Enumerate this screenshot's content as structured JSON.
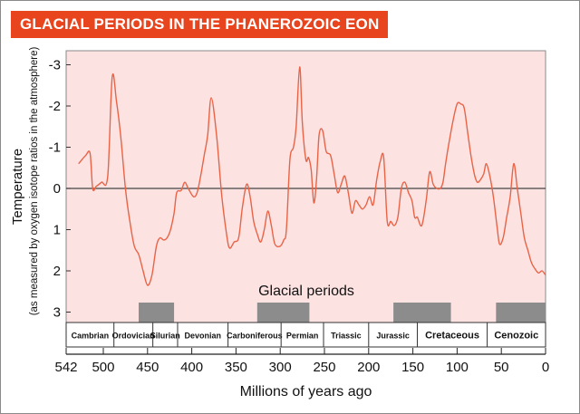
{
  "chart_data": {
    "type": "line",
    "title": "GLACIAL PERIODS IN THE PHANEROZOIC EON",
    "ylabel": "Temperature",
    "ylabel_sub": "(as measured by oxygen isotope ratios in the atmosphere)",
    "xlabel": "Millions of years ago",
    "x_reversed": true,
    "y_inverted": true,
    "xlim": [
      542,
      0
    ],
    "ylim": [
      -3.3,
      3.3
    ],
    "x_ticks": [
      {
        "value": 542,
        "label": "542"
      },
      {
        "value": 500,
        "label": "500"
      },
      {
        "value": 450,
        "label": "450"
      },
      {
        "value": 400,
        "label": "400"
      },
      {
        "value": 350,
        "label": "350"
      },
      {
        "value": 300,
        "label": "300"
      },
      {
        "value": 250,
        "label": "250"
      },
      {
        "value": 200,
        "label": "200"
      },
      {
        "value": 150,
        "label": "150"
      },
      {
        "value": 100,
        "label": "100"
      },
      {
        "value": 50,
        "label": "50"
      },
      {
        "value": 0,
        "label": "0"
      }
    ],
    "y_ticks": [
      {
        "value": -3,
        "label": "-3"
      },
      {
        "value": -2,
        "label": "-2"
      },
      {
        "value": -1,
        "label": "-1"
      },
      {
        "value": 0,
        "label": "0"
      },
      {
        "value": 1,
        "label": "1"
      },
      {
        "value": 2,
        "label": "2"
      },
      {
        "value": 3,
        "label": "3"
      }
    ],
    "series": [
      {
        "x": [
          528,
          520,
          515,
          512,
          508,
          502,
          495,
          490,
          485,
          480,
          475,
          470,
          465,
          460,
          455,
          450,
          445,
          440,
          436,
          432,
          428,
          424,
          420,
          417,
          412,
          408,
          404,
          398,
          394,
          390,
          386,
          382,
          378,
          372,
          366,
          360,
          357,
          352,
          347,
          343,
          338,
          334,
          330,
          326,
          322,
          318,
          314,
          310,
          306,
          300,
          296,
          293,
          289,
          285,
          282,
          278,
          275,
          271,
          268,
          265,
          262,
          259,
          256,
          252,
          248,
          243,
          239,
          235,
          231,
          227,
          223,
          219,
          215,
          211,
          207,
          203,
          199,
          195,
          191,
          187,
          183,
          179,
          175,
          171,
          167,
          163,
          159,
          155,
          151,
          148,
          145,
          140,
          135,
          131,
          127,
          123,
          119,
          116,
          113,
          110,
          105,
          100,
          96,
          92,
          88,
          84,
          80,
          77,
          74,
          70,
          67,
          63,
          59,
          55,
          52,
          48,
          44,
          40,
          36,
          32,
          28,
          24,
          20,
          16,
          12,
          8,
          4,
          0
        ],
        "y": [
          -0.6,
          -0.8,
          -0.85,
          0.0,
          -0.05,
          -0.15,
          -0.3,
          -2.7,
          -2.1,
          -1.2,
          0.0,
          0.8,
          1.4,
          1.6,
          2.0,
          2.35,
          2.1,
          1.4,
          1.2,
          1.25,
          1.2,
          1.0,
          0.6,
          0.1,
          0.05,
          -0.15,
          0.0,
          0.2,
          0.1,
          -0.3,
          -0.8,
          -1.3,
          -2.2,
          -1.3,
          0.2,
          1.2,
          1.45,
          1.3,
          1.2,
          0.5,
          -0.1,
          0.2,
          0.8,
          1.1,
          1.3,
          1.0,
          0.55,
          0.9,
          1.35,
          1.4,
          1.25,
          1.0,
          -0.7,
          -1.0,
          -1.5,
          -2.95,
          -1.6,
          -0.7,
          -0.75,
          -0.45,
          0.35,
          -0.2,
          -1.3,
          -1.4,
          -0.9,
          -0.8,
          -0.35,
          0.1,
          -0.1,
          -0.3,
          0.1,
          0.6,
          0.3,
          0.4,
          0.5,
          0.4,
          0.2,
          0.4,
          -0.2,
          -0.65,
          -0.75,
          0.8,
          0.8,
          0.9,
          0.7,
          0.0,
          -0.15,
          0.1,
          0.3,
          0.7,
          0.7,
          0.9,
          0.3,
          -0.4,
          -0.1,
          0.0,
          0.0,
          -0.15,
          -0.6,
          -1.0,
          -1.6,
          -2.05,
          -2.05,
          -1.95,
          -1.35,
          -0.75,
          -0.3,
          -0.15,
          -0.2,
          -0.35,
          -0.6,
          -0.3,
          0.2,
          0.9,
          1.35,
          1.2,
          0.7,
          0.2,
          -0.6,
          0.0,
          0.6,
          1.2,
          1.5,
          1.8,
          1.95,
          2.05,
          2.0,
          2.1
        ]
      }
    ],
    "glacial_periods_label": "Glacial periods",
    "glacial_periods": [
      {
        "start": 460,
        "end": 420
      },
      {
        "start": 326,
        "end": 267
      },
      {
        "start": 172,
        "end": 107
      },
      {
        "start": 56,
        "end": 0
      }
    ],
    "geologic_periods": [
      {
        "name": "Cambrian",
        "start": 542,
        "end": 488
      },
      {
        "name": "Ordovician",
        "start": 488,
        "end": 444
      },
      {
        "name": "Silurian",
        "start": 444,
        "end": 416
      },
      {
        "name": "Devonian",
        "start": 416,
        "end": 359
      },
      {
        "name": "Carboniferous",
        "start": 359,
        "end": 299
      },
      {
        "name": "Permian",
        "start": 299,
        "end": 251
      },
      {
        "name": "Triassic",
        "start": 251,
        "end": 200
      },
      {
        "name": "Jurassic",
        "start": 200,
        "end": 145
      },
      {
        "name": "Cretaceous",
        "start": 145,
        "end": 66
      },
      {
        "name": "Cenozoic",
        "start": 66,
        "end": 0
      }
    ],
    "colors": {
      "title_bg": "#e8441d",
      "plot_bg": "#fde2e2",
      "line": "#e86447",
      "glacial_bar": "#8c8c8c"
    }
  }
}
